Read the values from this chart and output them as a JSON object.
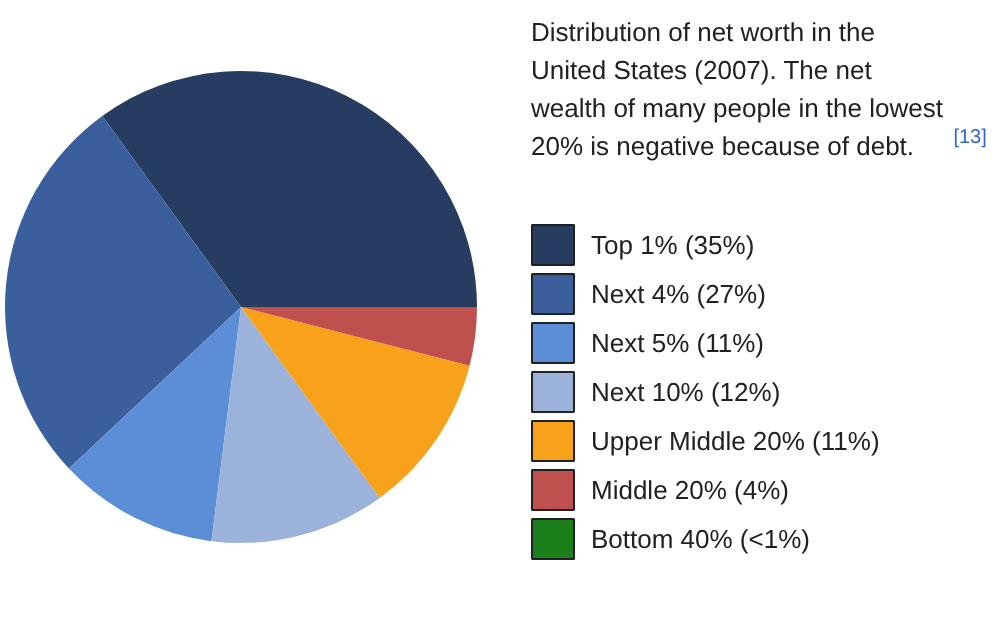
{
  "chart_data": {
    "type": "pie",
    "title": "Distribution of net worth in the United States (2007). The net wealth of many people in the lowest 20% is negative because of debt.$^{[13]}$",
    "categories": [
      "Top 1% (35%)",
      "Next 4% (27%)",
      "Next 5% (11%)",
      "Next 10% (12%)",
      "Upper Middle 20% (11%)",
      "Middle 20% (4%)",
      "Bottom 40% (<1%)"
    ],
    "values": [
      35,
      27,
      11,
      12,
      11,
      4,
      0
    ],
    "colors": [
      "#263c60",
      "#3a5f9c",
      "#5b8ed6",
      "#9bb3da",
      "#f8a21b",
      "#c0504d",
      "#1a7f1a"
    ],
    "legend": "right"
  }
}
